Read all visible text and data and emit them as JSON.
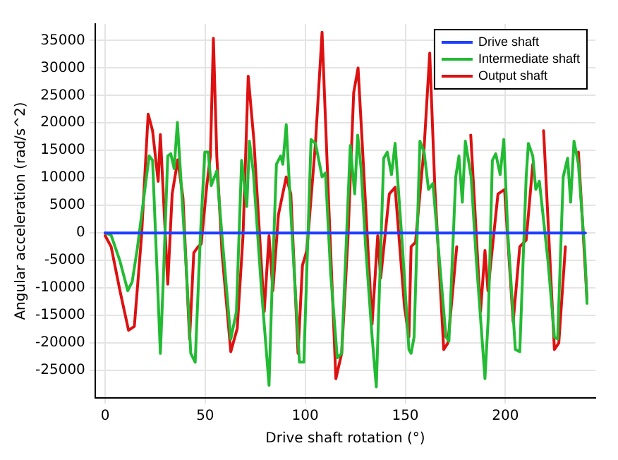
{
  "chart_data": {
    "type": "line",
    "xlabel": "Drive shaft rotation (°)",
    "ylabel": "Angular acceleration (rad/s^2)",
    "xlim": [
      -5,
      245
    ],
    "xticks": [
      0,
      50,
      100,
      150,
      200
    ],
    "ylim": [
      -30000,
      38000
    ],
    "yticks": [
      -25000,
      -20000,
      -15000,
      -10000,
      -5000,
      0,
      5000,
      10000,
      15000,
      20000,
      25000,
      30000,
      35000
    ],
    "grid": true,
    "legend": "top right",
    "marker": "none",
    "line_style": "solid",
    "series": [
      {
        "name": "Drive shaft",
        "color": "#1f3fff",
        "x": [
          0,
          240
        ],
        "values": [
          0,
          0
        ]
      },
      {
        "name": "Intermediate shaft",
        "color": "#22bb33",
        "x": [
          0,
          3,
          7.4,
          11.3,
          13.5,
          16.1,
          18.9,
          22,
          23.7,
          27.6,
          29.1,
          31.3,
          32.8,
          34.5,
          36.1,
          37.8,
          40.7,
          42.8,
          45,
          47.6,
          49.8,
          51.5,
          53,
          55.8,
          58.4,
          62.8,
          65.6,
          68.2,
          70.8,
          72.1,
          74.1,
          78,
          81.9,
          83.4,
          85.6,
          87.7,
          88.8,
          90.5,
          93.2,
          97.1,
          99.3,
          102.9,
          105.1,
          108.4,
          110.1,
          112.7,
          116,
          118.2,
          122.5,
          124.7,
          126.2,
          127.9,
          130.1,
          133.4,
          135.5,
          139.2,
          141,
          143.1,
          144.9,
          148.5,
          151.8,
          152.9,
          154.4,
          157.3,
          159.4,
          161.6,
          163.8,
          170.3,
          171.8,
          175.2,
          176.8,
          178.5,
          180,
          182.9,
          185.5,
          189.8,
          191.5,
          193.5,
          195.2,
          197.4,
          199.2,
          201.3,
          205,
          207.2,
          210.4,
          211.5,
          213.7,
          215.2,
          217,
          221.3,
          224.5,
          226.1,
          228.9,
          231.1,
          232.6,
          234.3,
          236.5,
          239.7,
          240.8
        ],
        "values": [
          0,
          -400,
          -5100,
          -10500,
          -8900,
          -2800,
          5200,
          14000,
          13200,
          -21900,
          -8200,
          14000,
          14400,
          11700,
          20100,
          10200,
          -7400,
          -21900,
          -23500,
          -500,
          14700,
          14700,
          8600,
          11300,
          -500,
          -19300,
          -14300,
          13200,
          4800,
          16700,
          10900,
          -9700,
          -27700,
          -10100,
          12500,
          14000,
          12500,
          19700,
          1000,
          -23500,
          -23500,
          17000,
          16300,
          10200,
          10900,
          -7400,
          -22700,
          -21900,
          15900,
          7100,
          17800,
          11700,
          -2100,
          -18900,
          -28000,
          13600,
          14700,
          10600,
          16300,
          -2100,
          -21200,
          -21900,
          -18900,
          16700,
          14700,
          7900,
          9000,
          -18900,
          -19700,
          10200,
          14000,
          5600,
          16700,
          10200,
          -5100,
          -26500,
          -15100,
          13200,
          14400,
          10600,
          17000,
          -500,
          -21200,
          -21600,
          10200,
          16300,
          14000,
          7900,
          9400,
          -5100,
          -18900,
          -19300,
          10200,
          13600,
          5600,
          16700,
          12500,
          -3600,
          -12800
        ]
      },
      {
        "name": "Output shaft",
        "color": "#dd1111",
        "x": [
          0,
          3,
          7.4,
          11.7,
          14.6,
          18.2,
          21.5,
          23.7,
          26.5,
          27.6,
          31.3,
          33.5,
          36.3,
          38.9,
          42.2,
          44.3,
          46.5,
          48,
          50.8,
          52.6,
          54.1,
          55.8,
          58.4,
          62.8,
          66,
          68.9,
          71.5,
          74.3,
          79.5,
          81.9,
          83.8,
          86.6,
          90.5,
          92.8,
          96.4,
          98.6,
          100.8,
          105.1,
          108.4,
          111.7,
          115.3,
          118.2,
          121.4,
          124.2,
          126.4,
          127.9,
          133.4,
          136.2,
          137.7,
          142,
          144.9,
          149.6,
          151.8,
          152.9,
          155.1,
          159.4,
          162.2,
          164.8,
          169.2,
          171.3,
          175.7,
          180,
          182.7,
          187.6,
          189.8,
          191.3,
          196.3,
          199.6,
          203.9,
          207.2,
          210.4,
          213.7,
          216.5,
          219.1,
          224.5,
          226.7,
          230,
          233.2,
          236.5,
          240.8
        ],
        "values": [
          -500,
          -2500,
          -10500,
          -17700,
          -17000,
          -500,
          21600,
          18600,
          9400,
          17900,
          -9300,
          7100,
          13300,
          6400,
          -19300,
          -3600,
          -2500,
          -2000,
          8600,
          14000,
          35400,
          14000,
          -3600,
          -21600,
          -17400,
          -500,
          28500,
          17000,
          -14300,
          -500,
          -10500,
          3300,
          10200,
          7100,
          -21900,
          -5900,
          -3200,
          16300,
          36500,
          5600,
          -26500,
          -21900,
          -500,
          25500,
          30000,
          20100,
          -16600,
          -500,
          -8200,
          7100,
          8300,
          -13500,
          -18900,
          -2500,
          -1700,
          15500,
          32700,
          7900,
          -21200,
          -20000,
          -2500,
          null,
          17800,
          -14300,
          -3200,
          -10500,
          7100,
          7900,
          -16200,
          -2500,
          -1300,
          12500,
          null,
          18600,
          -21200,
          -20000,
          -2500,
          null,
          14700,
          -12000
        ]
      }
    ]
  }
}
